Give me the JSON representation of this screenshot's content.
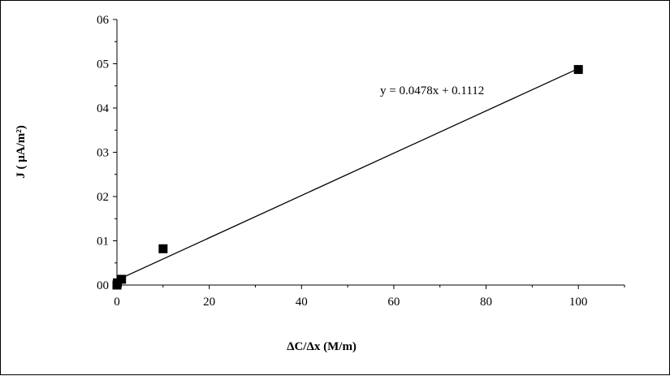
{
  "chart_data": {
    "type": "scatter",
    "xlabel": "ΔC/Δx (M/m)",
    "ylabel": "J ( μA/m²)",
    "xlim": [
      0,
      110
    ],
    "ylim": [
      0,
      6
    ],
    "x_ticks": [
      0,
      20,
      40,
      60,
      80,
      100
    ],
    "y_ticks": [
      0,
      1,
      2,
      3,
      4,
      5,
      6
    ],
    "x_tick_labels": [
      "0",
      "20",
      "40",
      "60",
      "80",
      "100"
    ],
    "y_tick_labels": [
      "00",
      "01",
      "02",
      "03",
      "04",
      "05",
      "06"
    ],
    "series": [
      {
        "points": [
          {
            "x": 0,
            "y": 0.0
          },
          {
            "x": 0.1,
            "y": 0.05
          },
          {
            "x": 1,
            "y": 0.13
          },
          {
            "x": 10,
            "y": 0.82
          },
          {
            "x": 100,
            "y": 4.87
          }
        ],
        "marker": "square",
        "color": "#000000"
      }
    ],
    "trendline": {
      "slope": 0.0478,
      "intercept": 0.1112,
      "x_range": [
        0,
        100
      ],
      "equation": "y = 0.0478x + 0.1112"
    },
    "grid": false,
    "legend": "none"
  }
}
